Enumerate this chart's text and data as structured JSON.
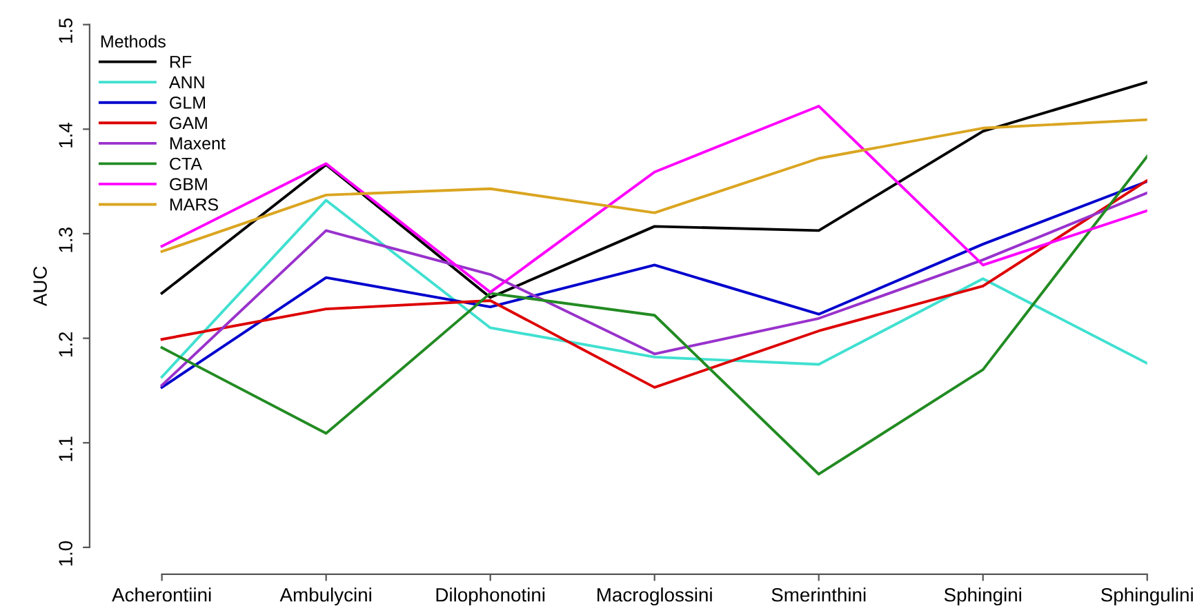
{
  "chart_data": {
    "type": "line",
    "ylabel": "AUC",
    "categories": [
      "Acherontiini",
      "Ambulycini",
      "Dilophonotini",
      "Macroglossini",
      "Smerinthini",
      "Sphingini",
      "Sphingulini"
    ],
    "series": [
      {
        "name": "RF",
        "color": "#000000",
        "values": [
          1.243,
          1.366,
          1.239,
          1.307,
          1.303,
          1.398,
          1.445
        ]
      },
      {
        "name": "ANN",
        "color": "#40e0d0",
        "values": [
          1.163,
          1.332,
          1.21,
          1.182,
          1.175,
          1.257,
          1.176
        ]
      },
      {
        "name": "GLM",
        "color": "#0000cd",
        "values": [
          1.153,
          1.258,
          1.23,
          1.27,
          1.223,
          1.29,
          1.35
        ]
      },
      {
        "name": "GAM",
        "color": "#dd0000",
        "values": [
          1.199,
          1.228,
          1.236,
          1.153,
          1.207,
          1.25,
          1.351
        ]
      },
      {
        "name": "Maxent",
        "color": "#9932cc",
        "values": [
          1.155,
          1.303,
          1.261,
          1.185,
          1.219,
          1.275,
          1.339
        ]
      },
      {
        "name": "CTA",
        "color": "#228b22",
        "values": [
          1.191,
          1.109,
          1.243,
          1.222,
          1.07,
          1.17,
          1.374
        ]
      },
      {
        "name": "GBM",
        "color": "#ff00ff",
        "values": [
          1.288,
          1.367,
          1.244,
          1.359,
          1.422,
          1.27,
          1.322
        ]
      },
      {
        "name": "MARS",
        "color": "#daa520",
        "values": [
          1.283,
          1.337,
          1.343,
          1.32,
          1.372,
          1.401,
          1.409
        ]
      }
    ],
    "ylim": [
      1.0,
      1.5
    ],
    "yticks": [
      {
        "value": 1.0,
        "label": "1.0"
      },
      1.1,
      1.2,
      1.3,
      1.4,
      1.5
    ],
    "legend": "top left",
    "legend_title": "Methods",
    "grid": false,
    "marker": "none",
    "line_style": "solid"
  }
}
